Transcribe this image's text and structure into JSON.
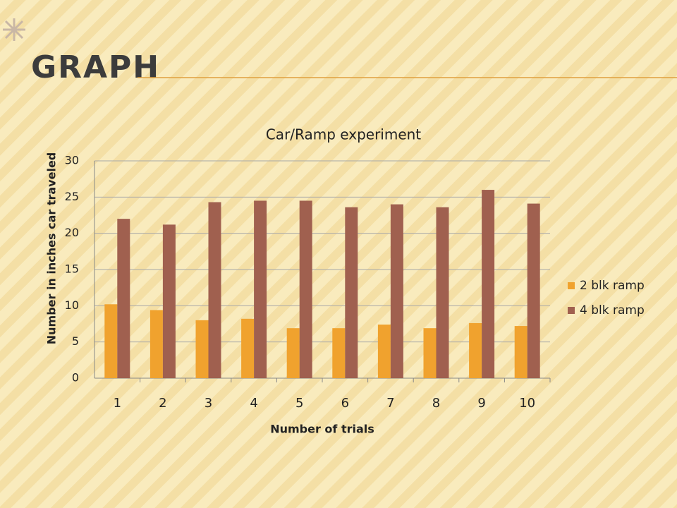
{
  "slide_title": "GRAPH",
  "chart_data": {
    "type": "bar",
    "title": "Car/Ramp experiment",
    "x_label": "Number of trials",
    "y_label": "Number in inches  car traveled",
    "categories": [
      "1",
      "2",
      "3",
      "4",
      "5",
      "6",
      "7",
      "8",
      "9",
      "10"
    ],
    "series": [
      {
        "name": "2 blk ramp",
        "color": "#f0a22e",
        "values": [
          10.2,
          9.4,
          8.0,
          8.2,
          6.9,
          6.9,
          7.4,
          6.9,
          7.6,
          7.2
        ]
      },
      {
        "name": "4 blk ramp",
        "color": "#a0604f",
        "values": [
          22.0,
          21.2,
          24.3,
          24.5,
          24.5,
          23.6,
          24.0,
          23.6,
          26.0,
          24.1
        ]
      }
    ],
    "ylim": [
      0,
      30
    ],
    "yticks": [
      0,
      5,
      10,
      15,
      20,
      25,
      30
    ],
    "grid": true,
    "legend": "right"
  }
}
